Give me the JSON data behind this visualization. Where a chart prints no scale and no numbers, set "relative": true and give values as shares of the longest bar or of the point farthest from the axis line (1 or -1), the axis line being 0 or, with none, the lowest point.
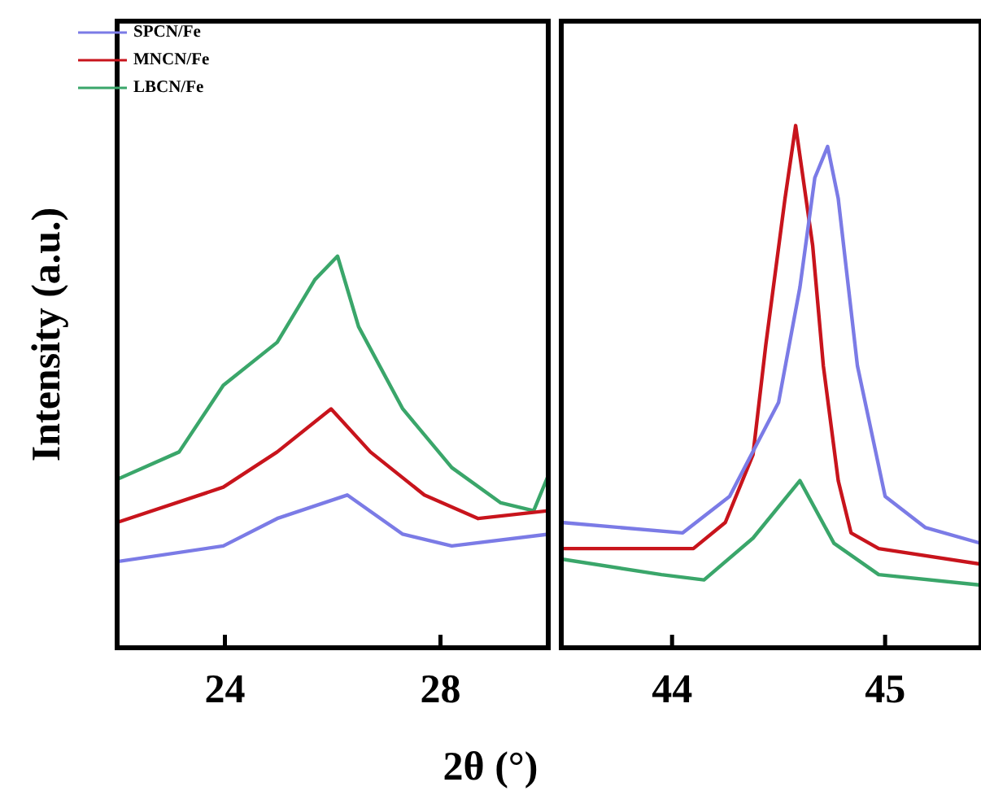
{
  "chart_data": [
    {
      "type": "line",
      "ylabel": "Intensity (a.u.)",
      "relative": true,
      "xlim": [
        22,
        30
      ],
      "xticks": [
        24,
        28
      ],
      "legend": "top left",
      "grid": false,
      "series": [
        {
          "name": "SPCN/Fe",
          "color": "#7b7be6",
          "x": [
            22.0,
            23.97,
            24.97,
            26.27,
            27.3,
            28.21,
            30.0
          ],
          "values": [
            0.22,
            0.26,
            0.33,
            0.39,
            0.29,
            0.26,
            0.29
          ]
        },
        {
          "name": "MNCN/Fe",
          "color": "#c8141c",
          "x": [
            22.0,
            23.97,
            24.97,
            25.97,
            26.7,
            27.7,
            28.7,
            30.0
          ],
          "values": [
            0.32,
            0.41,
            0.5,
            0.61,
            0.5,
            0.39,
            0.33,
            0.35
          ]
        },
        {
          "name": "LBCN/Fe",
          "color": "#3aa66a",
          "x": [
            22.0,
            23.15,
            23.97,
            24.97,
            25.67,
            26.09,
            26.48,
            27.3,
            28.21,
            29.12,
            29.73,
            30.0
          ],
          "values": [
            0.43,
            0.5,
            0.67,
            0.78,
            0.94,
            1,
            0.82,
            0.61,
            0.46,
            0.37,
            0.35,
            0.44
          ]
        }
      ]
    },
    {
      "type": "line",
      "xlabel": "2θ (°)",
      "relative": true,
      "xlim": [
        43.48,
        45.45
      ],
      "xticks": [
        44,
        45
      ],
      "grid": false,
      "series": [
        {
          "color": "#7b7be6",
          "x": [
            43.48,
            44.05,
            44.27,
            44.5,
            44.6,
            44.67,
            44.73,
            44.78,
            44.87,
            45.0,
            45.19,
            45.45
          ],
          "values": [
            0.24,
            0.22,
            0.29,
            0.47,
            0.69,
            0.9,
            0.96,
            0.86,
            0.54,
            0.29,
            0.23,
            0.2
          ]
        },
        {
          "color": "#c8141c",
          "x": [
            43.48,
            44.1,
            44.25,
            44.38,
            44.44,
            44.53,
            44.58,
            44.66,
            44.71,
            44.78,
            44.84,
            44.97,
            45.45
          ],
          "values": [
            0.19,
            0.19,
            0.24,
            0.37,
            0.58,
            0.86,
            1,
            0.77,
            0.54,
            0.32,
            0.22,
            0.19,
            0.16
          ]
        },
        {
          "color": "#3aa66a",
          "x": [
            43.48,
            43.95,
            44.15,
            44.38,
            44.6,
            44.76,
            44.97,
            45.45
          ],
          "values": [
            0.17,
            0.14,
            0.13,
            0.21,
            0.32,
            0.2,
            0.14,
            0.12
          ]
        }
      ]
    }
  ]
}
